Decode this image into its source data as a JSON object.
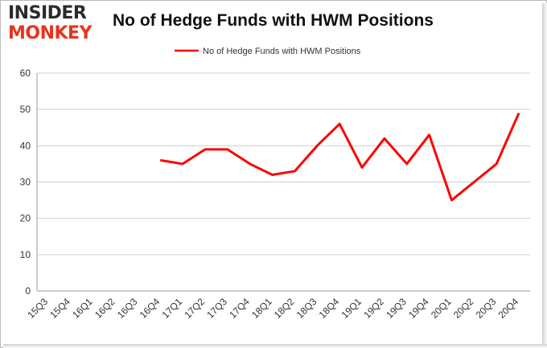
{
  "brand": {
    "logo_top": "INSIDER",
    "logo_bottom": "MONKEY"
  },
  "chart_data": {
    "type": "line",
    "title": "No of Hedge Funds with HWM Positions",
    "categories": [
      "15Q3",
      "15Q4",
      "16Q1",
      "16Q2",
      "16Q3",
      "16Q4",
      "17Q1",
      "17Q2",
      "17Q3",
      "17Q4",
      "18Q1",
      "18Q2",
      "18Q3",
      "18Q4",
      "19Q1",
      "19Q2",
      "19Q3",
      "19Q4",
      "20Q1",
      "20Q2",
      "20Q3",
      "20Q4"
    ],
    "series": [
      {
        "name": "No of Hedge Funds with HWM Positions",
        "color": "#ff0000",
        "values": [
          null,
          null,
          null,
          null,
          null,
          36,
          35,
          39,
          39,
          35,
          32,
          33,
          40,
          46,
          34,
          42,
          35,
          43,
          25,
          30,
          35,
          49
        ]
      }
    ],
    "ylim": [
      0,
      60
    ],
    "yticks": [
      0,
      10,
      20,
      30,
      40,
      50,
      60
    ],
    "grid": true,
    "legend": "top-center",
    "xlabel": "",
    "ylabel": ""
  }
}
